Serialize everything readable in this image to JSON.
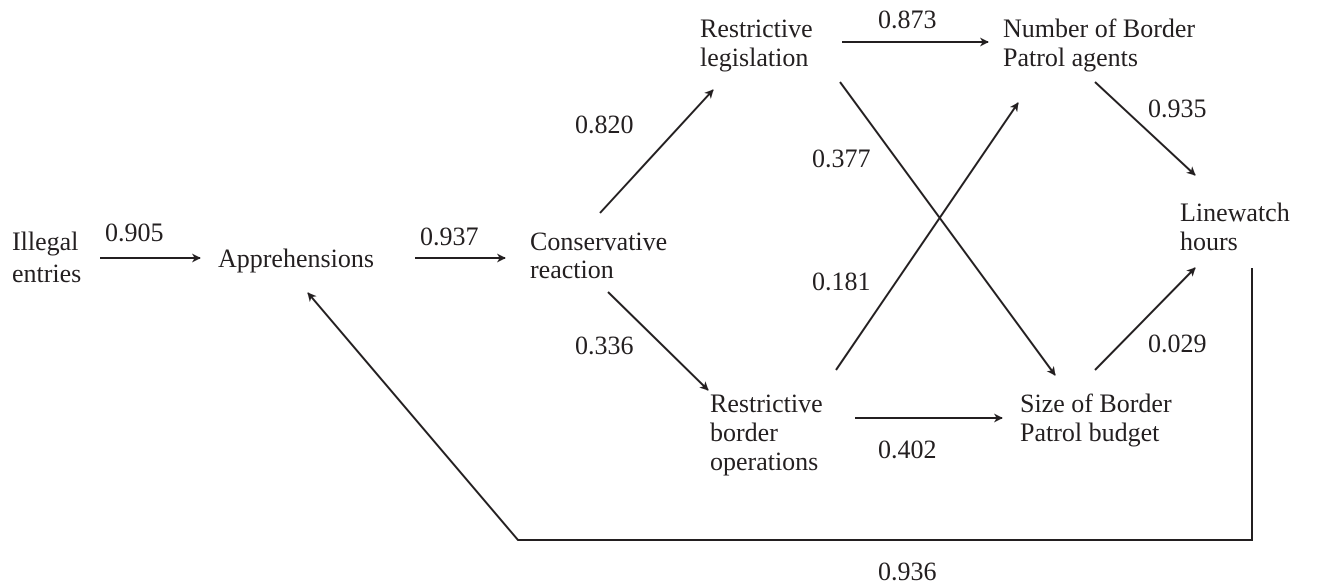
{
  "nodes": [
    {
      "lines": [
        "Illegal",
        "entries"
      ]
    },
    {
      "lines": [
        "Apprehensions"
      ]
    },
    {
      "lines": [
        "Conservative",
        "reaction"
      ]
    },
    {
      "lines": [
        "Restrictive",
        "legislation"
      ]
    },
    {
      "lines": [
        "Restrictive",
        "border",
        "operations"
      ]
    },
    {
      "lines": [
        "Number of Border",
        "Patrol agents"
      ]
    },
    {
      "lines": [
        "Size of Border",
        "Patrol budget"
      ]
    },
    {
      "lines": [
        "Linewatch",
        "hours"
      ]
    }
  ],
  "edges": [
    {
      "label": "0.905"
    },
    {
      "label": "0.937"
    },
    {
      "label": "0.820"
    },
    {
      "label": "0.336"
    },
    {
      "label": "0.873"
    },
    {
      "label": "0.377"
    },
    {
      "label": "0.181"
    },
    {
      "label": "0.402"
    },
    {
      "label": "0.935"
    },
    {
      "label": "0.029"
    },
    {
      "label": "0.936"
    }
  ]
}
